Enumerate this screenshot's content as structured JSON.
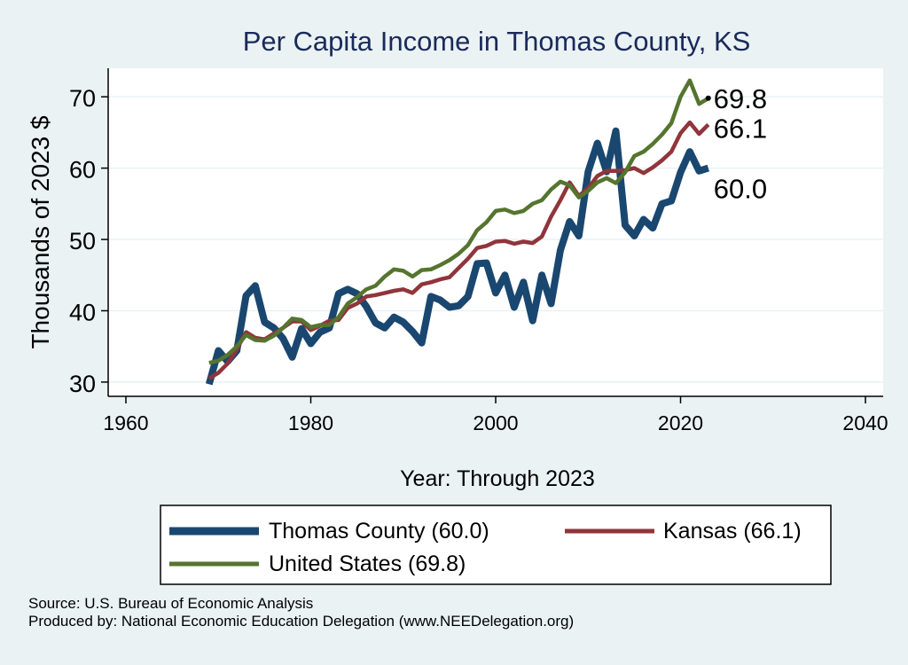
{
  "chart_data": {
    "type": "line",
    "title": "Per Capita Income in Thomas County, KS",
    "xlabel": "Year: Through 2023",
    "ylabel": "Thousands of 2023 $",
    "xlim": [
      1960,
      2040
    ],
    "ylim": [
      28,
      74
    ],
    "x_ticks": [
      1960,
      1980,
      2000,
      2020,
      2040
    ],
    "y_ticks": [
      30,
      40,
      50,
      60,
      70
    ],
    "grid": true,
    "legend_position": "bottom",
    "end_labels": [
      "69.8",
      "66.1",
      "60.0"
    ],
    "series": [
      {
        "name": "Thomas County (60.0)",
        "color": "#1a476f",
        "x": [
          1969,
          1970,
          1971,
          1972,
          1973,
          1974,
          1975,
          1976,
          1977,
          1978,
          1979,
          1980,
          1981,
          1982,
          1983,
          1984,
          1985,
          1986,
          1987,
          1988,
          1989,
          1990,
          1991,
          1992,
          1993,
          1994,
          1995,
          1996,
          1997,
          1998,
          1999,
          2000,
          2001,
          2002,
          2003,
          2004,
          2005,
          2006,
          2007,
          2008,
          2009,
          2010,
          2011,
          2012,
          2013,
          2014,
          2015,
          2016,
          2017,
          2018,
          2019,
          2020,
          2021,
          2022,
          2023
        ],
        "y": [
          29.7,
          34.4,
          32.9,
          34.4,
          42.1,
          43.5,
          38.4,
          37.6,
          36.1,
          33.5,
          37.5,
          35.4,
          37.0,
          37.6,
          42.4,
          43.0,
          42.4,
          40.6,
          38.3,
          37.6,
          39.1,
          38.4,
          37.1,
          35.5,
          42.0,
          41.5,
          40.5,
          40.7,
          42.0,
          46.6,
          46.7,
          42.5,
          45.0,
          40.5,
          44.0,
          38.6,
          45.0,
          41.0,
          48.5,
          52.5,
          50.5,
          59.5,
          63.5,
          59.5,
          65.2,
          52.0,
          50.5,
          52.8,
          51.6,
          55.0,
          55.4,
          59.4,
          62.3,
          59.6,
          60.0
        ]
      },
      {
        "name": "Kansas (66.1)",
        "color": "#90353b",
        "x": [
          1969,
          1970,
          1971,
          1972,
          1973,
          1974,
          1975,
          1976,
          1977,
          1978,
          1979,
          1980,
          1981,
          1982,
          1983,
          1984,
          1985,
          1986,
          1987,
          1988,
          1989,
          1990,
          1991,
          1992,
          1993,
          1994,
          1995,
          1996,
          1997,
          1998,
          1999,
          2000,
          2001,
          2002,
          2003,
          2004,
          2005,
          2006,
          2007,
          2008,
          2009,
          2010,
          2011,
          2012,
          2013,
          2014,
          2015,
          2016,
          2017,
          2018,
          2019,
          2020,
          2021,
          2022,
          2023
        ],
        "y": [
          30.5,
          31.3,
          32.6,
          34.6,
          37.0,
          36.2,
          36.0,
          36.8,
          37.6,
          38.5,
          38.5,
          37.3,
          37.9,
          38.6,
          38.7,
          40.4,
          41.0,
          42.0,
          42.2,
          42.5,
          42.8,
          43.0,
          42.5,
          43.7,
          44.0,
          44.4,
          44.7,
          46.0,
          47.3,
          48.8,
          49.1,
          49.7,
          49.8,
          49.4,
          49.7,
          49.5,
          50.4,
          53.2,
          55.5,
          58.0,
          56.1,
          57.2,
          58.9,
          59.6,
          59.6,
          59.7,
          60.0,
          59.3,
          60.1,
          61.1,
          62.3,
          64.9,
          66.4,
          64.8,
          66.1
        ]
      },
      {
        "name": "United States (69.8)",
        "color": "#55752f",
        "x": [
          1969,
          1970,
          1971,
          1972,
          1973,
          1974,
          1975,
          1976,
          1977,
          1978,
          1979,
          1980,
          1981,
          1982,
          1983,
          1984,
          1985,
          1986,
          1987,
          1988,
          1989,
          1990,
          1991,
          1992,
          1993,
          1994,
          1995,
          1996,
          1997,
          1998,
          1999,
          2000,
          2001,
          2002,
          2003,
          2004,
          2005,
          2006,
          2007,
          2008,
          2009,
          2010,
          2011,
          2012,
          2013,
          2014,
          2015,
          2016,
          2017,
          2018,
          2019,
          2020,
          2021,
          2022,
          2023
        ],
        "y": [
          32.7,
          33.0,
          33.8,
          35.0,
          36.6,
          35.9,
          35.8,
          36.5,
          37.6,
          38.9,
          38.7,
          37.7,
          38.0,
          38.0,
          39.1,
          41.0,
          41.9,
          43.0,
          43.5,
          44.8,
          45.8,
          45.6,
          44.8,
          45.7,
          45.8,
          46.4,
          47.1,
          48.0,
          49.2,
          51.3,
          52.4,
          54.0,
          54.2,
          53.7,
          54.0,
          55.0,
          55.5,
          57.0,
          58.1,
          57.6,
          55.9,
          56.8,
          58.0,
          58.6,
          57.9,
          59.4,
          61.7,
          62.3,
          63.4,
          64.7,
          66.3,
          70.0,
          72.3,
          69.0,
          69.8
        ]
      }
    ]
  },
  "source_line": "Source: U.S. Bureau of Economic Analysis",
  "produced_line": "Produced by: National Economic Education Delegation (www.NEEDelegation.org)"
}
